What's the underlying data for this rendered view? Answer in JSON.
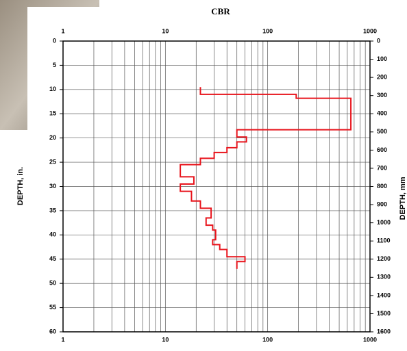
{
  "chart_data": {
    "type": "line",
    "title": "CBR",
    "ylabel": "DEPTH, in.",
    "y2label": "DEPTH, mm",
    "xscale": "log",
    "xlim": [
      1,
      1000
    ],
    "xticks": [
      1,
      10,
      100,
      1000
    ],
    "ylim": [
      0,
      60
    ],
    "yticks": [
      0,
      5,
      10,
      15,
      20,
      25,
      30,
      35,
      40,
      45,
      50,
      55,
      60
    ],
    "yinverted": true,
    "y2lim": [
      0,
      1600
    ],
    "y2ticks": [
      0,
      100,
      200,
      300,
      400,
      500,
      600,
      700,
      800,
      900,
      1000,
      1100,
      1200,
      1300,
      1400,
      1500,
      1600
    ],
    "grid": true,
    "series": [
      {
        "color": "#e8141c",
        "x": [
          22,
          22,
          190,
          190,
          650,
          650,
          50,
          50,
          62,
          62,
          50,
          50,
          40,
          40,
          30,
          30,
          22,
          22,
          14,
          14,
          19,
          19,
          14,
          14,
          18,
          18,
          22,
          22,
          28,
          28,
          25,
          25,
          29,
          29,
          31,
          31,
          29,
          29,
          34,
          34,
          40,
          40,
          60,
          60,
          50,
          50
        ],
        "values": [
          9.5,
          11,
          11,
          11.8,
          11.8,
          18.3,
          18.3,
          19.8,
          19.8,
          20.8,
          20.8,
          22,
          22,
          23,
          23,
          24.2,
          24.2,
          25.5,
          25.5,
          28,
          28,
          29.5,
          29.5,
          31,
          31,
          33,
          33,
          34.5,
          34.5,
          36.5,
          36.5,
          38,
          38,
          39,
          39,
          41,
          41,
          42,
          42,
          43,
          43,
          44.5,
          44.5,
          45.5,
          45.5,
          47
        ]
      }
    ]
  }
}
